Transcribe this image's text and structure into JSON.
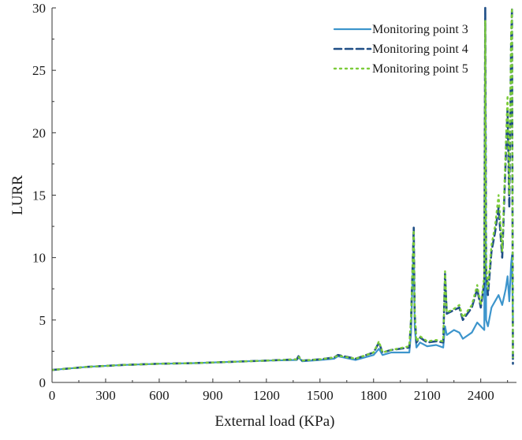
{
  "chart_data": {
    "type": "line",
    "title": "",
    "xlabel": "External load (KPa)",
    "ylabel": "LURR",
    "xlim": [
      0,
      2600
    ],
    "ylim": [
      0,
      30
    ],
    "x_ticks": [
      0,
      300,
      600,
      900,
      1200,
      1500,
      1800,
      2100,
      2400
    ],
    "y_ticks": [
      0,
      5,
      10,
      15,
      20,
      25,
      30
    ],
    "x_tick_labels": [
      "0",
      "300",
      "600",
      "900",
      "1200",
      "1500",
      "1800",
      "2100",
      "2400"
    ],
    "y_tick_labels": [
      "0",
      "5",
      "10",
      "15",
      "20",
      "25",
      "30"
    ],
    "legend_position": "top-right",
    "grid": false,
    "series": [
      {
        "name": "Monitoring point 3",
        "color": "#3d95cc",
        "style": "solid",
        "x": [
          0,
          200,
          400,
          600,
          800,
          1000,
          1200,
          1370,
          1380,
          1400,
          1500,
          1580,
          1600,
          1700,
          1800,
          1830,
          1850,
          1900,
          2000,
          2010,
          2025,
          2030,
          2040,
          2060,
          2100,
          2150,
          2190,
          2200,
          2210,
          2250,
          2280,
          2300,
          2350,
          2380,
          2400,
          2420,
          2425,
          2430,
          2440,
          2460,
          2480,
          2500,
          2520,
          2540,
          2550,
          2560,
          2570,
          2575,
          2580
        ],
        "y": [
          1.0,
          1.25,
          1.4,
          1.5,
          1.55,
          1.65,
          1.75,
          1.8,
          2.0,
          1.7,
          1.8,
          1.9,
          2.1,
          1.8,
          2.2,
          2.7,
          2.2,
          2.4,
          2.4,
          4.0,
          11.8,
          4.5,
          2.8,
          3.2,
          2.9,
          3.0,
          2.8,
          4.5,
          3.8,
          4.2,
          4.0,
          3.5,
          4.0,
          4.8,
          4.5,
          4.2,
          29.5,
          5.0,
          4.5,
          6.0,
          6.5,
          7.0,
          6.2,
          7.5,
          8.5,
          6.5,
          9.5,
          10.2,
          5.0
        ]
      },
      {
        "name": "Monitoring point 4",
        "color": "#1f4e86",
        "style": "dashed",
        "x": [
          0,
          200,
          400,
          600,
          800,
          1000,
          1200,
          1370,
          1380,
          1400,
          1500,
          1580,
          1600,
          1700,
          1800,
          1830,
          1850,
          1900,
          2000,
          2010,
          2025,
          2030,
          2040,
          2060,
          2100,
          2150,
          2190,
          2200,
          2210,
          2250,
          2280,
          2300,
          2350,
          2380,
          2400,
          2420,
          2425,
          2430,
          2440,
          2460,
          2480,
          2500,
          2520,
          2540,
          2550,
          2560,
          2570,
          2575,
          2580
        ],
        "y": [
          1.0,
          1.25,
          1.4,
          1.5,
          1.55,
          1.65,
          1.75,
          1.85,
          2.1,
          1.75,
          1.85,
          2.0,
          2.2,
          1.9,
          2.4,
          3.2,
          2.4,
          2.6,
          2.8,
          5.0,
          12.4,
          5.5,
          3.2,
          3.6,
          3.2,
          3.3,
          3.2,
          8.7,
          5.5,
          5.8,
          6.0,
          5.0,
          6.0,
          7.5,
          6.0,
          8.0,
          30.0,
          9.0,
          7.0,
          10.5,
          12.0,
          14.0,
          10.0,
          18.0,
          22.0,
          14.0,
          27.0,
          30.0,
          1.5
        ]
      },
      {
        "name": "Monitoring point 5",
        "color": "#7ccc3a",
        "style": "dotted",
        "x": [
          0,
          200,
          400,
          600,
          800,
          1000,
          1200,
          1370,
          1380,
          1400,
          1500,
          1580,
          1600,
          1700,
          1800,
          1830,
          1850,
          1900,
          2000,
          2010,
          2025,
          2030,
          2040,
          2060,
          2100,
          2150,
          2190,
          2200,
          2210,
          2250,
          2280,
          2300,
          2350,
          2380,
          2400,
          2420,
          2425,
          2430,
          2440,
          2460,
          2480,
          2500,
          2520,
          2540,
          2550,
          2560,
          2570,
          2575,
          2580
        ],
        "y": [
          1.0,
          1.25,
          1.4,
          1.5,
          1.55,
          1.65,
          1.75,
          1.85,
          2.05,
          1.75,
          1.85,
          2.0,
          2.15,
          1.9,
          2.4,
          3.3,
          2.4,
          2.6,
          2.9,
          5.2,
          12.2,
          5.6,
          3.3,
          3.7,
          3.3,
          3.4,
          3.3,
          8.9,
          5.6,
          5.9,
          6.2,
          5.2,
          6.2,
          7.8,
          6.2,
          8.5,
          29.0,
          9.5,
          7.5,
          11.0,
          12.5,
          15.0,
          10.5,
          19.0,
          23.0,
          15.0,
          28.0,
          30.0,
          2.0
        ]
      }
    ]
  }
}
